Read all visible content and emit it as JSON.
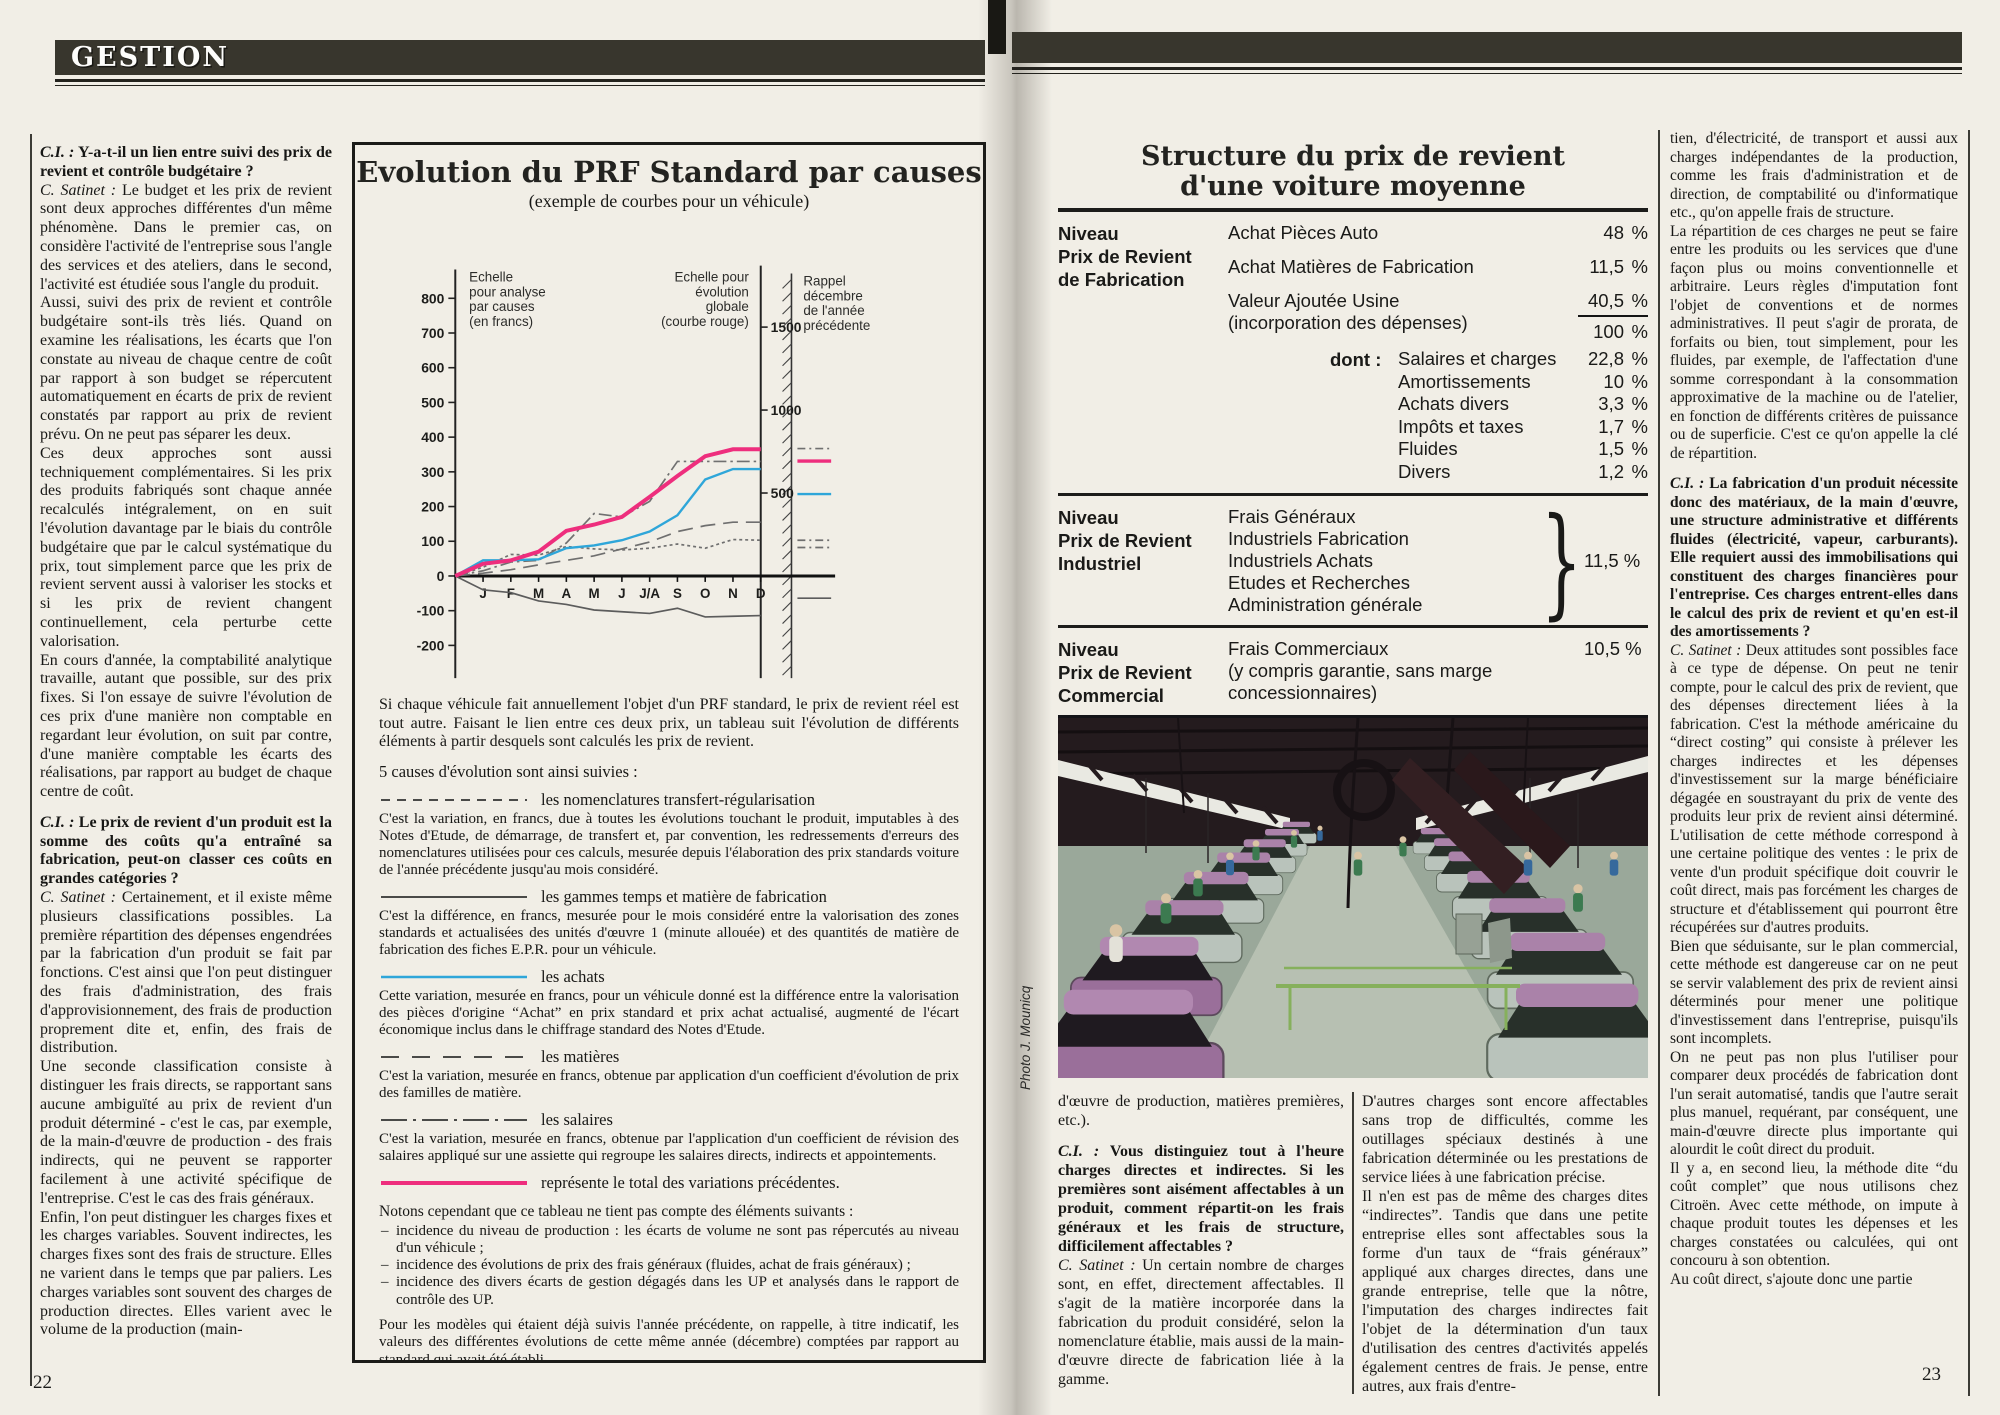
{
  "page_left": {
    "header": "GESTION",
    "page_number": "22",
    "col1": [
      {
        "kind": "q",
        "lead": "C.I. :",
        "text": "Y-a-t-il un lien entre suivi des prix de revient et contrôle budgétaire ?"
      },
      {
        "kind": "a",
        "lead": "C. Satinet :",
        "text": "Le budget et les prix de revient sont deux approches différentes d'un même phénomène. Dans le premier cas, on considère l'activité de l'entreprise sous l'angle des services et des ateliers, dans le second, l'activité est étudiée sous l'angle du produit."
      },
      {
        "kind": "p",
        "lead": "",
        "text": "Aussi, suivi des prix de revient et contrôle budgétaire sont-ils très liés. Quand on examine les réalisations, les écarts que l'on constate au niveau de chaque centre de coût par rapport à son budget se répercutent automatiquement en écarts de prix de revient constatés par rapport au prix de revient prévu. On ne peut pas séparer les deux."
      },
      {
        "kind": "p",
        "lead": "",
        "text": "Ces deux approches sont aussi techniquement complémentaires. Si les prix des produits fabriqués sont chaque année recalculés intégralement, on en suit l'évolution davantage par le biais du contrôle budgétaire que par le calcul systématique du prix, tout simplement parce que les prix de revient servent aussi à valoriser les stocks et si les prix de revient changent continuellement, cela perturbe cette valorisation."
      },
      {
        "kind": "p",
        "lead": "",
        "text": "En cours d'année, la comptabilité analytique travaille, autant que possible, sur des prix fixes. Si l'on essaye de suivre l'évolution de ces prix d'une manière non comptable en regardant leur évolution, on suit par contre, d'une manière comptable les écarts des réalisations, par rapport au budget de chaque centre de coût."
      },
      {
        "kind": "q",
        "lead": "C.I. :",
        "text": "Le prix de revient d'un produit est la somme des coûts qu'a entraîné sa fabrication, peut-on classer ces coûts en grandes catégories ?"
      },
      {
        "kind": "a",
        "lead": "C. Satinet :",
        "text": "Certainement, et il existe même plusieurs classifications possibles. La première répartition des dépenses engendrées par la fabrication d'un produit se fait par fonctions. C'est ainsi que l'on peut distinguer des frais d'administration, des frais d'approvisionnement, des frais de production proprement dite et, enfin, des frais de distribution."
      },
      {
        "kind": "p",
        "lead": "",
        "text": "Une seconde classification consiste à distinguer les frais directs, se rapportant sans aucune ambiguïté au prix de revient d'un produit déterminé - c'est le cas, par exemple, de la main-d'œuvre de production - des frais indirects, qui ne peuvent se rapporter facilement à une activité spécifique de l'entreprise. C'est le cas des frais généraux."
      },
      {
        "kind": "p",
        "lead": "",
        "text": "Enfin, l'on peut distinguer les charges fixes et les charges variables. Souvent indirectes, les charges fixes sont des frais de structure. Elles ne varient dans le temps que par paliers. Les charges variables sont souvent des charges de production directes. Elles varient avec le volume de la production (main-"
      }
    ],
    "chart_box": {
      "intro": "Si chaque véhicule fait annuellement l'objet d'un PRF standard, le prix de revient réel est tout autre. Faisant le lien entre ces deux prix, un tableau suit l'évolution de différents éléments à partir desquels sont calculés les prix de revient.",
      "causes_heading": "5 causes d'évolution sont ainsi suivies :",
      "notes_heading": "Notons cependant que ce tableau ne tient pas compte des éléments suivants :",
      "notes": [
        {
          "text": "incidence du niveau de production : les écarts de volume ne sont pas répercutés au niveau d'un véhicule ;"
        },
        {
          "text": "incidence des évolutions de prix des frais généraux (fluides, achat de frais généraux) ;"
        },
        {
          "text": "incidence des divers écarts de gestion dégagés dans les UP et analysés dans le rapport de contrôle des UP."
        }
      ],
      "footer": "Pour les modèles qui étaient déjà suivis l'année précédente, on rappelle, à titre indicatif, les valeurs des différentes évolutions de cette même année (décembre) comptées par rapport au standard qui avait été établi."
    }
  },
  "chart_data": {
    "type": "line",
    "title": "Evolution du PRF Standard par causes",
    "subtitle": "(exemple de courbes pour un véhicule)",
    "x_labels": [
      "J",
      "F",
      "M",
      "A",
      "M",
      "J",
      "J/A",
      "S",
      "O",
      "N",
      "D"
    ],
    "left_axis": {
      "label": "Echelle\npour analyse\npar causes\n(en francs)",
      "ticks": [
        800,
        700,
        600,
        500,
        400,
        300,
        200,
        100,
        0,
        -100,
        -200
      ],
      "range": [
        -250,
        850
      ]
    },
    "right_axis": {
      "label": "Echelle pour\névolution\nglobale\n(courbe rouge)",
      "ticks": [
        {
          "label": "1500",
          "value": 1500
        },
        {
          "label": "1000",
          "value": 1000
        },
        {
          "label": "500",
          "value": 500
        }
      ],
      "francs_per_unit": 0.478
    },
    "rappel": {
      "label": "Rappel\ndécembre\nde l'année\nprécédente",
      "marks": [
        {
          "series": "salaires",
          "value": 367
        },
        {
          "series": "total",
          "value": 331
        },
        {
          "series": "achats",
          "value": 236
        },
        {
          "series": "nomenclatures",
          "value": 103
        },
        {
          "series": "matieres",
          "value": 82
        },
        {
          "series": "gammes",
          "value": -64
        }
      ]
    },
    "series": [
      {
        "name": "nomenclatures",
        "color": "#6f6f6f",
        "width": 1.7,
        "dash": "3 3",
        "values": [
          0,
          25,
          62,
          60,
          85,
          78,
          75,
          80,
          92,
          80,
          105,
          103
        ]
      },
      {
        "name": "matieres",
        "color": "#6f6f6f",
        "width": 1.7,
        "dash": "15 8",
        "values": [
          0,
          8,
          18,
          32,
          45,
          58,
          78,
          98,
          128,
          145,
          155,
          155
        ]
      },
      {
        "name": "salaires",
        "color": "#707070",
        "width": 1.7,
        "dash": "13 4 2.5 4",
        "values": [
          0,
          15,
          40,
          45,
          95,
          180,
          170,
          215,
          330,
          330,
          330,
          330
        ]
      },
      {
        "name": "gammes",
        "color": "#5c5c5c",
        "width": 1.7,
        "dash": "",
        "values": [
          0,
          -40,
          -48,
          -72,
          -82,
          -98,
          -103,
          -108,
          -93,
          -118,
          -116,
          -114
        ]
      },
      {
        "name": "achats",
        "color": "#2fa6d9",
        "width": 2.4,
        "dash": "",
        "values": [
          0,
          45,
          45,
          48,
          80,
          88,
          103,
          128,
          175,
          278,
          308,
          308
        ]
      },
      {
        "name": "total",
        "color": "#ee2e7d",
        "width": 4,
        "dash": "",
        "values": [
          0,
          35,
          45,
          70,
          130,
          148,
          170,
          228,
          288,
          345,
          365,
          365
        ]
      }
    ],
    "legend": [
      {
        "sample": {
          "color": "#4a4a48",
          "width": 2,
          "dash": "9 7"
        },
        "label": "les nomenclatures transfert-régularisation",
        "desc": "C'est la variation, en francs, due à toutes les évolutions touchant le produit, imputables à des Notes d'Etude, de démarrage, de transfert et, par convention, les redressements d'erreurs des nomenclatures utilisées pour ces calculs, mesurée depuis l'élaboration des prix standards voiture de l'année précédente jusqu'au mois considéré."
      },
      {
        "sample": {
          "color": "#4a4a48",
          "width": 2,
          "dash": ""
        },
        "label": "les gammes temps et matière de fabrication",
        "desc": "C'est la différence, en francs, mesurée pour le mois considéré entre la valorisation des zones standards et actualisées des unités d'œuvre 1 (minute allouée) et des quantités de matière de fabrication des fiches E.P.R. pour un véhicule."
      },
      {
        "sample": {
          "color": "#2fa6d9",
          "width": 2.4,
          "dash": ""
        },
        "label": "les achats",
        "desc": "Cette variation, mesurée en francs, pour un véhicule donné est la différence entre la valorisation des pièces d'origine “Achat” en prix standard et prix achat actualisé, augmenté de l'écart économique inclus dans le chiffrage standard des Notes d'Etude."
      },
      {
        "sample": {
          "color": "#4a4a48",
          "width": 2,
          "dash": "18 13"
        },
        "label": "les matières",
        "desc": "C'est la variation, mesurée en francs, obtenue par application d'un coefficient d'évolution de prix des familles de matière."
      },
      {
        "sample": {
          "color": "#4a4a48",
          "width": 2,
          "dash": "26 6 3 6"
        },
        "label": "les salaires",
        "desc": "C'est la variation, mesurée en francs, obtenue par l'application d'un coefficient de révision des salaires appliqué sur une assiette qui regroupe les salaires directs, indirects et appointements."
      },
      {
        "sample": {
          "color": "#ee2e7d",
          "width": 4,
          "dash": ""
        },
        "label": "représente le total des variations précédentes.",
        "desc": ""
      }
    ]
  },
  "page_right": {
    "page_number": "23",
    "photo_credit": "Photo J. Mounicq",
    "table": {
      "title1": "Structure du prix de revient",
      "title2": "d'une voiture moyenne",
      "fab_level": "Niveau\nPrix de Revient\nde Fabrication",
      "fab_rows": [
        {
          "label": "Achat Pièces Auto",
          "num": "48",
          "pct": "%"
        },
        {
          "label": "Achat Matières de Fabrication",
          "num": "11,5",
          "pct": "%"
        }
      ],
      "va_label": "Valeur Ajoutée Usine\n(incorporation des dépenses)",
      "va_num": "40,5",
      "va_pct": "%",
      "va_total_num": "100",
      "va_total_pct": "%",
      "dont_label": "dont :",
      "dont_rows": [
        {
          "label": "Salaires et charges",
          "num": "22,8",
          "pct": "%"
        },
        {
          "label": "Amortissements",
          "num": "10",
          "pct": "%"
        },
        {
          "label": "Achats divers",
          "num": "3,3",
          "pct": "%"
        },
        {
          "label": "Impôts et taxes",
          "num": "1,7",
          "pct": "%"
        },
        {
          "label": "Fluides",
          "num": "1,5",
          "pct": "%"
        },
        {
          "label": "Divers",
          "num": "1,2",
          "pct": "%"
        }
      ],
      "ind_level": "Niveau\nPrix de Revient\nIndustriel",
      "ind_items": "Frais Généraux\nIndustriels Fabrication\nIndustriels Achats\nEtudes et Recherches\nAdministration générale",
      "brace": "}",
      "ind_value": "11,5 %",
      "com_level": "Niveau\nPrix de Revient\nCommercial",
      "com_item": "Frais Commerciaux\n(y compris garantie, sans marge\nconcessionnaires)",
      "com_value": "10,5 %"
    },
    "colA": [
      {
        "kind": "p",
        "lead": "",
        "text": "d'œuvre de production, matières premières, etc.)."
      },
      {
        "kind": "q",
        "lead": "C.I. :",
        "text": "Vous distinguiez tout à l'heure charges directes et indirectes. Si les premières sont aisément affectables à un produit, comment répartit-on les frais généraux et les frais de structure, difficilement affectables ?"
      },
      {
        "kind": "a",
        "lead": "C. Satinet :",
        "text": "Un certain nombre de charges sont, en effet, directement affectables. Il s'agit de la matière incorporée dans la fabrication du produit considéré, selon la nomenclature établie, mais aussi de la main-d'œuvre directe de fabrication liée à la gamme."
      }
    ],
    "colB": [
      {
        "kind": "p",
        "lead": "",
        "text": "D'autres charges sont encore affectables sans trop de difficultés, comme les outillages spéciaux destinés à une fabrication déterminée ou les prestations de service liées à une fabrication précise."
      },
      {
        "kind": "p",
        "lead": "",
        "text": "Il n'en est pas de même des charges dites “indirectes”. Tandis que dans une petite entreprise elles sont affectables sous la forme d'un taux de “frais généraux” appliqué aux charges directes, dans une grande entreprise, telle que la nôtre, l'imputation des charges indirectes fait l'objet de la détermination d'un taux d'utilisation des centres d'activités appelés également centres de frais. Je pense, entre autres, aux frais d'entre-"
      }
    ],
    "colC": [
      {
        "kind": "p",
        "lead": "",
        "text": "tien, d'électricité, de transport et aussi aux charges indépendantes de la production, comme les frais d'administration et de direction, de comptabilité ou d'informatique etc., qu'on appelle frais de structure."
      },
      {
        "kind": "p",
        "lead": "",
        "text": "La répartition de ces charges ne peut se faire entre les produits ou les services que d'une façon plus ou moins conventionnelle et arbitraire. Leurs règles d'imputation font l'objet de conventions et de normes administratives. Il peut s'agir de prorata, de forfaits ou bien, tout simplement, pour les fluides, par exemple, de l'affectation d'une somme correspondant à la consommation approximative de la machine ou de l'atelier, en fonction de différents critères de puissance ou de superficie. C'est ce qu'on appelle la clé de répartition."
      },
      {
        "kind": "q",
        "lead": "C.I. :",
        "text": "La fabrication d'un produit nécessite donc des matériaux, de la main d'œuvre, une structure administrative et différents fluides (électricité, vapeur, carburants). Elle requiert aussi des immobilisations qui constituent des charges financières pour l'entreprise. Ces charges entrent-elles dans le calcul des prix de revient et qu'en est-il des amortissements ?"
      },
      {
        "kind": "a",
        "lead": "C. Satinet :",
        "text": "Deux attitudes sont possibles face à ce type de dépense. On peut ne tenir compte, pour le calcul des prix de revient, que des dépenses directement liées à la fabrication. C'est la méthode américaine du “direct costing” qui consiste à prélever les charges indirectes et les dépenses d'investissement sur la marge bénéficiaire dégagée en soustrayant du prix de vente des produits leur prix de revient ainsi déterminé. L'utilisation de cette méthode correspond à une certaine politique des ventes : le prix de vente d'un produit spécifique doit couvrir le coût direct, mais pas forcément les charges de structure et d'établissement qui pourront être récupérées sur d'autres produits."
      },
      {
        "kind": "p",
        "lead": "",
        "text": "Bien que séduisante, sur le plan commercial, cette méthode est dangereuse car on ne peut se servir valablement des prix de revient ainsi déterminés pour mener une politique d'investissement dans l'entreprise, puisqu'ils sont incomplets."
      },
      {
        "kind": "p",
        "lead": "",
        "text": "On ne peut pas non plus l'utiliser pour comparer deux procédés de fabrication dont l'un serait automatisé, tandis que l'autre serait plus manuel, requérant, par conséquent, une main-d'œuvre directe plus importante qui alourdit le coût direct du produit."
      },
      {
        "kind": "p",
        "lead": "",
        "text": "Il y a, en second lieu, la méthode dite “du coût complet” que nous utilisons chez Citroën. Avec cette méthode, on impute à chaque produit toutes les dépenses et les charges constatées ou calculées, qui ont concouru à son obtention."
      },
      {
        "kind": "p",
        "lead": "",
        "text": "Au coût direct, s'ajoute donc une partie"
      }
    ]
  }
}
